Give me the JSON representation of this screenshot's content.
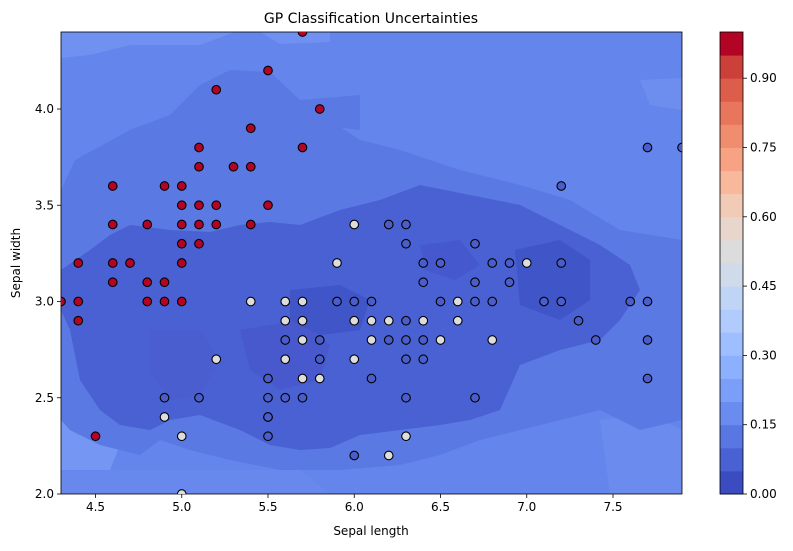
{
  "chart_data": {
    "type": "scatter",
    "title": "GP Classification Uncertainties",
    "xlabel": "Sepal length",
    "ylabel": "Sepal width",
    "xlim": [
      4.3,
      7.9
    ],
    "ylim": [
      2.0,
      4.4
    ],
    "x_ticks": [
      "4.5",
      "5.0",
      "5.5",
      "6.0",
      "6.5",
      "7.0",
      "7.5"
    ],
    "x_tick_values": [
      4.5,
      5.0,
      5.5,
      6.0,
      6.5,
      7.0,
      7.5
    ],
    "y_ticks": [
      "2.0",
      "2.5",
      "3.0",
      "3.5",
      "4.0"
    ],
    "y_tick_values": [
      2.0,
      2.5,
      3.0,
      3.5,
      4.0
    ],
    "background": "filled contour of predictive uncertainty (coolwarm colormap)",
    "colorbar": {
      "range": [
        0.0,
        1.0
      ],
      "ticks": [
        "0.00",
        "0.15",
        "0.30",
        "0.45",
        "0.60",
        "0.75",
        "0.90"
      ],
      "tick_values": [
        0.0,
        0.15,
        0.3,
        0.45,
        0.6,
        0.75,
        0.9
      ],
      "levels": [
        "#3b4cc0",
        "#4961d2",
        "#5977e3",
        "#6a8bef",
        "#7b9ff9",
        "#8db0fe",
        "#9ebeff",
        "#b1cbfc",
        "#c0d4f5",
        "#cfdaea",
        "#dddcdc",
        "#e8d6cc",
        "#f2cbb7",
        "#f7b89c",
        "#f6a283",
        "#f18d6f",
        "#e8765c",
        "#dc5d4a",
        "#cc403a",
        "#b40426"
      ]
    },
    "series": [
      {
        "color": "#b40426",
        "edgecolor": "#000000",
        "points": [
          [
            4.3,
            3.0
          ],
          [
            4.4,
            3.2
          ],
          [
            4.4,
            3.0
          ],
          [
            4.4,
            2.9
          ],
          [
            4.5,
            2.3
          ],
          [
            4.6,
            3.6
          ],
          [
            4.6,
            3.4
          ],
          [
            4.6,
            3.2
          ],
          [
            4.6,
            3.1
          ],
          [
            4.7,
            3.2
          ],
          [
            4.8,
            3.4
          ],
          [
            4.8,
            3.1
          ],
          [
            4.8,
            3.0
          ],
          [
            4.9,
            3.6
          ],
          [
            4.9,
            3.1
          ],
          [
            4.9,
            3.0
          ],
          [
            5.0,
            3.6
          ],
          [
            5.0,
            3.5
          ],
          [
            5.0,
            3.4
          ],
          [
            5.0,
            3.3
          ],
          [
            5.0,
            3.2
          ],
          [
            5.0,
            3.0
          ],
          [
            5.1,
            3.8
          ],
          [
            5.1,
            3.7
          ],
          [
            5.1,
            3.5
          ],
          [
            5.1,
            3.4
          ],
          [
            5.1,
            3.3
          ],
          [
            5.2,
            4.1
          ],
          [
            5.2,
            3.5
          ],
          [
            5.2,
            3.4
          ],
          [
            5.3,
            3.7
          ],
          [
            5.4,
            3.9
          ],
          [
            5.4,
            3.7
          ],
          [
            5.4,
            3.4
          ],
          [
            5.5,
            4.2
          ],
          [
            5.5,
            3.5
          ],
          [
            5.7,
            4.4
          ],
          [
            5.7,
            3.8
          ],
          [
            5.8,
            4.0
          ]
        ]
      },
      {
        "color": "#dddddd",
        "edgecolor": "#000000",
        "points": [
          [
            4.9,
            2.4
          ],
          [
            5.0,
            2.3
          ],
          [
            5.0,
            2.0
          ],
          [
            5.2,
            2.7
          ],
          [
            5.4,
            3.0
          ],
          [
            5.5,
            2.4
          ],
          [
            5.6,
            3.0
          ],
          [
            5.6,
            2.9
          ],
          [
            5.6,
            2.7
          ],
          [
            5.7,
            3.0
          ],
          [
            5.7,
            2.9
          ],
          [
            5.7,
            2.8
          ],
          [
            5.7,
            2.6
          ],
          [
            5.8,
            2.6
          ],
          [
            5.9,
            3.2
          ],
          [
            6.0,
            3.4
          ],
          [
            6.0,
            2.9
          ],
          [
            6.0,
            2.7
          ],
          [
            6.1,
            2.9
          ],
          [
            6.1,
            2.8
          ],
          [
            6.2,
            2.9
          ],
          [
            6.2,
            2.2
          ],
          [
            6.3,
            2.3
          ],
          [
            6.4,
            2.9
          ],
          [
            6.5,
            2.8
          ],
          [
            6.6,
            3.0
          ],
          [
            6.6,
            2.9
          ],
          [
            6.8,
            2.8
          ],
          [
            7.0,
            3.2
          ]
        ]
      },
      {
        "color": "#4a5dc8",
        "edgecolor": "#000000",
        "points": [
          [
            4.9,
            2.5
          ],
          [
            5.1,
            2.5
          ],
          [
            5.5,
            2.6
          ],
          [
            5.5,
            2.5
          ],
          [
            5.5,
            2.4
          ],
          [
            5.5,
            2.3
          ],
          [
            5.6,
            2.8
          ],
          [
            5.6,
            2.5
          ],
          [
            5.7,
            2.5
          ],
          [
            5.8,
            2.8
          ],
          [
            5.8,
            2.7
          ],
          [
            5.9,
            3.0
          ],
          [
            6.0,
            3.0
          ],
          [
            6.0,
            2.2
          ],
          [
            6.1,
            3.0
          ],
          [
            6.1,
            2.6
          ],
          [
            6.2,
            3.4
          ],
          [
            6.2,
            2.8
          ],
          [
            6.3,
            3.4
          ],
          [
            6.3,
            3.3
          ],
          [
            6.3,
            2.9
          ],
          [
            6.3,
            2.8
          ],
          [
            6.3,
            2.7
          ],
          [
            6.3,
            2.5
          ],
          [
            6.4,
            3.2
          ],
          [
            6.4,
            3.1
          ],
          [
            6.4,
            2.8
          ],
          [
            6.4,
            2.7
          ],
          [
            6.5,
            3.2
          ],
          [
            6.5,
            3.0
          ],
          [
            6.7,
            3.3
          ],
          [
            6.7,
            3.1
          ],
          [
            6.7,
            3.0
          ],
          [
            6.7,
            2.5
          ],
          [
            6.8,
            3.2
          ],
          [
            6.8,
            3.0
          ],
          [
            6.9,
            3.2
          ],
          [
            6.9,
            3.1
          ],
          [
            7.1,
            3.0
          ],
          [
            7.2,
            3.6
          ],
          [
            7.2,
            3.2
          ],
          [
            7.2,
            3.0
          ],
          [
            7.3,
            2.9
          ],
          [
            7.4,
            2.8
          ],
          [
            7.6,
            3.0
          ],
          [
            7.7,
            3.8
          ],
          [
            7.7,
            3.0
          ],
          [
            7.7,
            2.8
          ],
          [
            7.7,
            2.6
          ],
          [
            7.9,
            3.8
          ]
        ]
      }
    ]
  }
}
